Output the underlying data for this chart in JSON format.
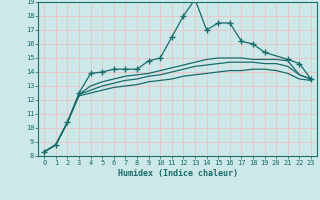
{
  "title": "",
  "xlabel": "Humidex (Indice chaleur)",
  "xlim": [
    -0.5,
    23.5
  ],
  "ylim": [
    8,
    19
  ],
  "xticks": [
    0,
    1,
    2,
    3,
    4,
    5,
    6,
    7,
    8,
    9,
    10,
    11,
    12,
    13,
    14,
    15,
    16,
    17,
    18,
    19,
    20,
    21,
    22,
    23
  ],
  "yticks": [
    8,
    9,
    10,
    11,
    12,
    13,
    14,
    15,
    16,
    17,
    18,
    19
  ],
  "background_color": "#cce8e8",
  "grid_color": "#e8c8c8",
  "line_color": "#1a6b6b",
  "series": [
    {
      "x": [
        0,
        1,
        2,
        3,
        4,
        5,
        6,
        7,
        8,
        9,
        10,
        11,
        12,
        13,
        14,
        15,
        16,
        17,
        18,
        19,
        21,
        22,
        23
      ],
      "y": [
        8.3,
        8.8,
        10.4,
        12.5,
        13.9,
        14.0,
        14.2,
        14.2,
        14.2,
        14.8,
        15.0,
        16.5,
        18.0,
        19.2,
        17.0,
        17.5,
        17.5,
        16.2,
        16.0,
        15.4,
        14.9,
        14.6,
        13.5
      ],
      "marker": true
    },
    {
      "x": [
        0,
        1,
        2,
        3,
        4,
        5,
        6,
        7,
        8,
        9,
        10,
        11,
        12,
        13,
        14,
        15,
        16,
        17,
        18,
        19,
        20,
        21,
        22,
        23
      ],
      "y": [
        8.3,
        8.8,
        10.4,
        12.4,
        13.0,
        13.3,
        13.5,
        13.7,
        13.8,
        13.9,
        14.1,
        14.3,
        14.5,
        14.7,
        14.9,
        15.0,
        15.0,
        15.0,
        14.9,
        14.9,
        14.9,
        14.8,
        13.8,
        13.5
      ],
      "marker": false
    },
    {
      "x": [
        0,
        1,
        2,
        3,
        4,
        5,
        6,
        7,
        8,
        9,
        10,
        11,
        12,
        13,
        14,
        15,
        16,
        17,
        18,
        19,
        20,
        21,
        22,
        23
      ],
      "y": [
        8.3,
        8.8,
        10.4,
        12.4,
        12.7,
        13.0,
        13.2,
        13.4,
        13.5,
        13.7,
        13.8,
        14.0,
        14.2,
        14.4,
        14.5,
        14.6,
        14.7,
        14.7,
        14.7,
        14.6,
        14.6,
        14.4,
        13.8,
        13.5
      ],
      "marker": false
    },
    {
      "x": [
        0,
        1,
        2,
        3,
        4,
        5,
        6,
        7,
        8,
        9,
        10,
        11,
        12,
        13,
        14,
        15,
        16,
        17,
        18,
        19,
        20,
        21,
        22,
        23
      ],
      "y": [
        8.3,
        8.8,
        10.4,
        12.3,
        12.5,
        12.7,
        12.9,
        13.0,
        13.1,
        13.3,
        13.4,
        13.5,
        13.7,
        13.8,
        13.9,
        14.0,
        14.1,
        14.1,
        14.2,
        14.2,
        14.1,
        13.9,
        13.5,
        13.4
      ],
      "marker": false
    }
  ]
}
